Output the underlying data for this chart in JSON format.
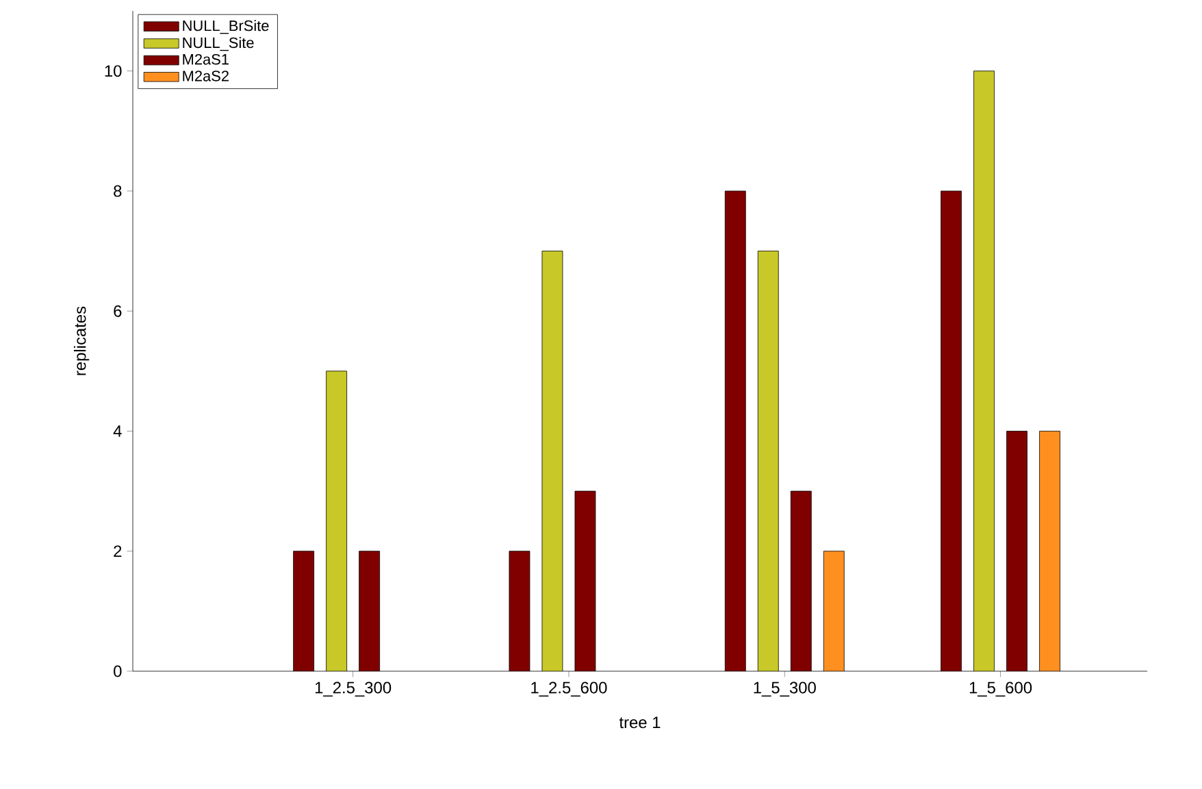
{
  "chart_data": {
    "type": "bar",
    "xlabel": "tree 1",
    "ylabel": "replicates",
    "categories": [
      "1_2.5_300",
      "1_2.5_600",
      "1_5_300",
      "1_5_600"
    ],
    "series": [
      {
        "name": "NULL_BrSite",
        "color": "#800000",
        "values": [
          2,
          2,
          8,
          8
        ]
      },
      {
        "name": "NULL_Site",
        "color": "#c8c828",
        "values": [
          5,
          7,
          7,
          10
        ]
      },
      {
        "name": "M2aS1",
        "color": "#800000",
        "values": [
          2,
          3,
          3,
          4
        ]
      },
      {
        "name": "M2aS2",
        "color": "#ff9020",
        "values": [
          null,
          null,
          2,
          4
        ]
      }
    ],
    "ylim": [
      0,
      11
    ],
    "yticks": [
      0,
      2,
      4,
      6,
      8,
      10
    ],
    "legend": "top left"
  }
}
